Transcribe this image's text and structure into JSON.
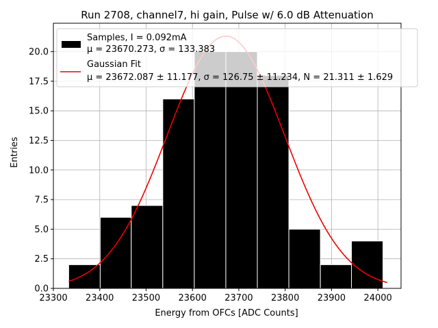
{
  "chart_data": {
    "type": "bar",
    "title": "Run 2708, channel7, hi gain, Pulse w/ 6.0 dB Attenuation",
    "xlabel": "Energy from OFCs [ADC Counts]",
    "ylabel": "Entries",
    "xlim": [
      23300,
      24050
    ],
    "ylim": [
      0,
      22.4
    ],
    "xticks": [
      23300,
      23400,
      23500,
      23600,
      23700,
      23800,
      23900,
      24000
    ],
    "yticks": [
      0.0,
      2.5,
      5.0,
      7.5,
      10.0,
      12.5,
      15.0,
      17.5,
      20.0
    ],
    "xtick_labels": [
      "23300",
      "23400",
      "23500",
      "23600",
      "23700",
      "23800",
      "23900",
      "24000"
    ],
    "ytick_labels": [
      "0.0",
      "2.5",
      "5.0",
      "7.5",
      "10.0",
      "12.5",
      "15.0",
      "17.5",
      "20.0"
    ],
    "grid": true,
    "legend_position": "upper-right",
    "histogram": {
      "name": "Samples, I = 0.092mA",
      "stats": "μ = 23670.273, σ = 133.383",
      "color": "#000000",
      "bin_edges": [
        23333,
        23401,
        23468,
        23536,
        23604,
        23672,
        23740,
        23808,
        23876,
        23943,
        24011
      ],
      "counts": [
        2,
        6,
        7,
        16,
        20,
        20,
        18,
        5,
        2,
        4
      ]
    },
    "fit": {
      "name": "Gaussian Fit",
      "stats": "μ = 23672.087 ± 11.177, σ = 126.75 ± 11.234, N = 21.311 ± 1.629",
      "color": "#ee0000",
      "mu": 23672.087,
      "sigma": 126.75,
      "amplitude": 21.311,
      "x_range": [
        23333,
        24020
      ]
    }
  }
}
